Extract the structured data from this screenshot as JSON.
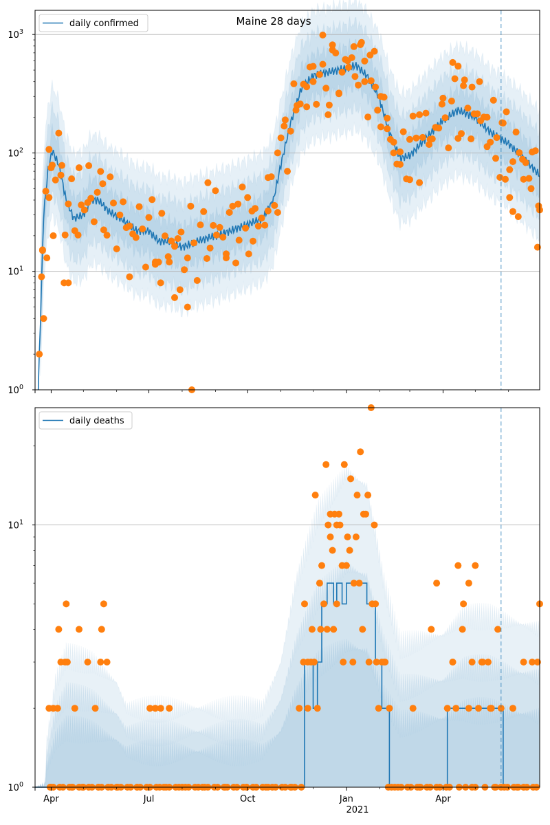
{
  "figure_title": "Maine 28 days",
  "colors": {
    "model_line": "#1f77b4",
    "band": "#1f77b4",
    "observed_points": "#ff7f0e",
    "grid": "#b0b0b0",
    "cutoff_line": "#1f77b4"
  },
  "chart_data": [
    {
      "type": "line",
      "title": "Maine 28 days",
      "legend": {
        "label": "daily confirmed",
        "placement": "top-left"
      },
      "yscale": "log",
      "ylim": [
        1,
        1600
      ],
      "yticks": [
        1,
        10,
        100,
        1000
      ],
      "ytick_labels": [
        "10^0",
        "10^1",
        "10^2",
        "10^3"
      ],
      "xlim": [
        "2020-03-17",
        "2021-06-30"
      ],
      "xticks": [
        "2020-04-01",
        "2020-07-01",
        "2020-10-01",
        "2021-01-01",
        "2021-04-01"
      ],
      "xtick_labels": [
        "Apr",
        "Jul",
        "Oct",
        "Jan",
        "Apr"
      ],
      "year_label": "2021",
      "forecast_start": "2021-05-25",
      "model_anchors": [
        [
          "2020-03-20",
          1
        ],
        [
          "2020-03-25",
          30
        ],
        [
          "2020-03-29",
          70
        ],
        [
          "2020-04-02",
          105
        ],
        [
          "2020-04-08",
          80
        ],
        [
          "2020-04-15",
          40
        ],
        [
          "2020-04-22",
          28
        ],
        [
          "2020-05-01",
          30
        ],
        [
          "2020-05-08",
          40
        ],
        [
          "2020-05-15",
          40
        ],
        [
          "2020-05-25",
          32
        ],
        [
          "2020-06-05",
          28
        ],
        [
          "2020-06-20",
          22
        ],
        [
          "2020-07-01",
          22
        ],
        [
          "2020-07-10",
          18
        ],
        [
          "2020-07-20",
          18
        ],
        [
          "2020-08-01",
          16
        ],
        [
          "2020-08-15",
          18
        ],
        [
          "2020-09-01",
          20
        ],
        [
          "2020-09-15",
          22
        ],
        [
          "2020-10-01",
          25
        ],
        [
          "2020-10-15",
          28
        ],
        [
          "2020-10-25",
          40
        ],
        [
          "2020-11-01",
          80
        ],
        [
          "2020-11-10",
          180
        ],
        [
          "2020-11-20",
          350
        ],
        [
          "2020-12-01",
          450
        ],
        [
          "2020-12-15",
          480
        ],
        [
          "2021-01-01",
          520
        ],
        [
          "2021-01-10",
          550
        ],
        [
          "2021-01-20",
          450
        ],
        [
          "2021-01-31",
          300
        ],
        [
          "2021-02-10",
          150
        ],
        [
          "2021-02-20",
          90
        ],
        [
          "2021-03-01",
          95
        ],
        [
          "2021-03-15",
          130
        ],
        [
          "2021-04-01",
          190
        ],
        [
          "2021-04-15",
          230
        ],
        [
          "2021-05-01",
          200
        ],
        [
          "2021-05-15",
          150
        ],
        [
          "2021-06-01",
          120
        ],
        [
          "2021-06-15",
          90
        ],
        [
          "2021-06-30",
          65
        ]
      ],
      "band_factors": [
        1.5,
        2.3,
        3.5
      ],
      "observed_sample": [
        [
          "2020-03-21",
          2
        ],
        [
          "2020-03-23",
          9
        ],
        [
          "2020-03-24",
          15
        ],
        [
          "2020-03-25",
          4
        ],
        [
          "2020-03-28",
          13
        ],
        [
          "2020-03-30",
          42
        ],
        [
          "2020-04-01",
          75
        ],
        [
          "2020-04-03",
          20
        ],
        [
          "2020-04-10",
          65
        ],
        [
          "2020-04-13",
          8
        ],
        [
          "2020-04-17",
          8
        ],
        [
          "2020-04-27",
          75
        ],
        [
          "2020-05-06",
          78
        ],
        [
          "2020-05-19",
          55
        ],
        [
          "2020-06-13",
          9
        ],
        [
          "2020-07-07",
          12
        ],
        [
          "2020-07-12",
          8
        ],
        [
          "2020-07-20",
          12
        ],
        [
          "2020-07-25",
          6
        ],
        [
          "2020-07-30",
          7
        ],
        [
          "2020-08-06",
          5
        ],
        [
          "2020-08-10",
          1
        ],
        [
          "2020-08-25",
          56
        ],
        [
          "2020-09-01",
          48
        ],
        [
          "2020-09-11",
          13
        ],
        [
          "2020-09-22",
          37
        ],
        [
          "2020-10-01",
          42
        ],
        [
          "2020-10-06",
          18
        ],
        [
          "2020-10-20",
          62
        ],
        [
          "2020-10-29",
          100
        ],
        [
          "2020-11-05",
          190
        ],
        [
          "2020-11-15",
          230
        ],
        [
          "2020-11-25",
          245
        ],
        [
          "2020-12-01",
          400
        ],
        [
          "2020-12-10",
          560
        ],
        [
          "2020-12-15",
          210
        ],
        [
          "2020-12-19",
          740
        ],
        [
          "2020-12-25",
          320
        ],
        [
          "2021-01-02",
          600
        ],
        [
          "2021-01-08",
          790
        ],
        [
          "2021-01-14",
          820
        ],
        [
          "2021-01-18",
          400
        ],
        [
          "2021-01-23",
          670
        ],
        [
          "2021-01-28",
          360
        ],
        [
          "2021-02-02",
          300
        ],
        [
          "2021-02-08",
          160
        ],
        [
          "2021-02-14",
          100
        ],
        [
          "2021-02-20",
          80
        ],
        [
          "2021-03-01",
          130
        ],
        [
          "2021-03-10",
          210
        ],
        [
          "2021-03-20",
          130
        ],
        [
          "2021-04-01",
          290
        ],
        [
          "2021-04-10",
          580
        ],
        [
          "2021-04-15",
          540
        ],
        [
          "2021-04-20",
          370
        ],
        [
          "2021-04-28",
          360
        ],
        [
          "2021-05-05",
          400
        ],
        [
          "2021-05-12",
          200
        ],
        [
          "2021-05-20",
          90
        ],
        [
          "2021-05-26",
          180
        ],
        [
          "2021-05-29",
          60
        ],
        [
          "2021-06-02",
          42
        ],
        [
          "2021-06-05",
          32
        ],
        [
          "2021-06-10",
          29
        ],
        [
          "2021-06-15",
          60
        ],
        [
          "2021-06-22",
          50
        ],
        [
          "2021-06-28",
          16
        ],
        [
          "2021-06-30",
          33
        ]
      ]
    },
    {
      "type": "line",
      "legend": {
        "label": "daily deaths",
        "placement": "top-left"
      },
      "yscale": "log",
      "ylim": [
        1,
        28
      ],
      "yticks": [
        1,
        10
      ],
      "ytick_labels": [
        "10^0",
        "10^1"
      ],
      "xlim": [
        "2020-03-17",
        "2021-06-30"
      ],
      "xticks": [
        "2020-04-01",
        "2020-07-01",
        "2020-10-01",
        "2021-01-01",
        "2021-04-01"
      ],
      "xtick_labels": [
        "Apr",
        "Jul",
        "Oct",
        "Jan",
        "Apr"
      ],
      "year_label": "2021",
      "forecast_start": "2021-05-25",
      "model_steps": [
        [
          "2020-03-17",
          1
        ],
        [
          "2020-11-23",
          3
        ],
        [
          "2020-12-01",
          2
        ],
        [
          "2020-12-05",
          3
        ],
        [
          "2020-12-09",
          5
        ],
        [
          "2020-12-14",
          6
        ],
        [
          "2020-12-20",
          5
        ],
        [
          "2020-12-23",
          6
        ],
        [
          "2020-12-28",
          5
        ],
        [
          "2021-01-01",
          6
        ],
        [
          "2021-01-20",
          5
        ],
        [
          "2021-01-28",
          3
        ],
        [
          "2021-02-03",
          2
        ],
        [
          "2021-02-10",
          1
        ],
        [
          "2021-04-01",
          1
        ],
        [
          "2021-04-05",
          2
        ],
        [
          "2021-05-27",
          1
        ],
        [
          "2021-06-30",
          1
        ]
      ],
      "band_profile": [
        [
          "2020-03-17",
          1.0
        ],
        [
          "2020-03-26",
          1.0
        ],
        [
          "2020-03-28",
          1.5
        ],
        [
          "2020-04-05",
          2.5
        ],
        [
          "2020-04-15",
          3.2
        ],
        [
          "2020-05-10",
          3.0
        ],
        [
          "2020-06-01",
          2.5
        ],
        [
          "2020-06-10",
          2.0
        ],
        [
          "2020-10-15",
          2.0
        ],
        [
          "2020-11-01",
          3.0
        ],
        [
          "2020-11-15",
          6.0
        ],
        [
          "2020-12-05",
          11.0
        ],
        [
          "2021-01-01",
          16.0
        ],
        [
          "2021-01-20",
          14.0
        ],
        [
          "2021-02-05",
          6.0
        ],
        [
          "2021-02-20",
          3.5
        ],
        [
          "2021-04-01",
          3.8
        ],
        [
          "2021-04-20",
          4.5
        ],
        [
          "2021-05-15",
          4.5
        ],
        [
          "2021-06-30",
          4.0
        ]
      ],
      "observed_sample": [
        [
          "2020-03-30",
          2
        ],
        [
          "2020-04-03",
          2
        ],
        [
          "2020-04-07",
          2
        ],
        [
          "2020-04-08",
          4
        ],
        [
          "2020-04-10",
          3
        ],
        [
          "2020-04-14",
          3
        ],
        [
          "2020-04-15",
          5
        ],
        [
          "2020-04-16",
          3
        ],
        [
          "2020-04-23",
          2
        ],
        [
          "2020-04-27",
          4
        ],
        [
          "2020-05-05",
          3
        ],
        [
          "2020-05-17",
          3
        ],
        [
          "2020-05-18",
          4
        ],
        [
          "2020-05-20",
          5
        ],
        [
          "2020-05-23",
          3
        ],
        [
          "2020-05-12",
          2
        ],
        [
          "2020-07-02",
          2
        ],
        [
          "2020-07-07",
          2
        ],
        [
          "2020-07-12",
          2
        ],
        [
          "2020-07-20",
          2
        ],
        [
          "2020-11-18",
          2
        ],
        [
          "2020-11-22",
          3
        ],
        [
          "2020-11-26",
          3
        ],
        [
          "2020-11-30",
          4
        ],
        [
          "2020-12-03",
          13
        ],
        [
          "2020-12-07",
          6
        ],
        [
          "2020-12-09",
          7
        ],
        [
          "2020-12-13",
          17
        ],
        [
          "2020-12-15",
          10
        ],
        [
          "2020-12-17",
          9
        ],
        [
          "2020-12-19",
          8
        ],
        [
          "2020-12-21",
          11
        ],
        [
          "2020-12-23",
          10
        ],
        [
          "2020-12-25",
          11
        ],
        [
          "2020-12-28",
          7
        ],
        [
          "2020-12-30",
          17
        ],
        [
          "2021-01-02",
          9
        ],
        [
          "2021-01-05",
          15
        ],
        [
          "2021-01-08",
          6
        ],
        [
          "2021-01-11",
          13
        ],
        [
          "2021-01-14",
          19
        ],
        [
          "2021-01-17",
          11
        ],
        [
          "2021-01-21",
          13
        ],
        [
          "2021-01-24",
          28
        ],
        [
          "2021-01-27",
          10
        ],
        [
          "2021-01-29",
          3
        ],
        [
          "2021-02-05",
          3
        ],
        [
          "2021-02-10",
          2
        ],
        [
          "2021-03-04",
          2
        ],
        [
          "2021-03-21",
          4
        ],
        [
          "2021-03-26",
          6
        ],
        [
          "2021-04-05",
          2
        ],
        [
          "2021-04-10",
          3
        ],
        [
          "2021-04-15",
          7
        ],
        [
          "2021-04-20",
          5
        ],
        [
          "2021-04-25",
          6
        ],
        [
          "2021-05-01",
          7
        ],
        [
          "2021-05-08",
          3
        ],
        [
          "2021-05-15",
          2
        ],
        [
          "2021-05-25",
          2
        ],
        [
          "2021-06-05",
          2
        ],
        [
          "2021-06-15",
          3
        ],
        [
          "2021-06-23",
          3
        ],
        [
          "2021-06-28",
          3
        ],
        [
          "2021-06-30",
          5
        ],
        [
          "2020-04-01",
          1
        ],
        [
          "2020-04-20",
          1
        ],
        [
          "2020-05-01",
          1
        ],
        [
          "2020-05-15",
          1
        ],
        [
          "2020-06-01",
          1
        ],
        [
          "2020-06-20",
          1
        ],
        [
          "2020-07-15",
          1
        ],
        [
          "2020-08-01",
          1
        ],
        [
          "2020-08-20",
          1
        ],
        [
          "2020-09-10",
          1
        ],
        [
          "2020-09-30",
          1
        ],
        [
          "2020-10-20",
          1
        ],
        [
          "2020-11-10",
          1
        ],
        [
          "2021-02-15",
          1
        ],
        [
          "2021-03-10",
          1
        ],
        [
          "2021-04-28",
          1
        ],
        [
          "2021-05-20",
          1
        ],
        [
          "2021-06-10",
          1
        ]
      ]
    }
  ]
}
